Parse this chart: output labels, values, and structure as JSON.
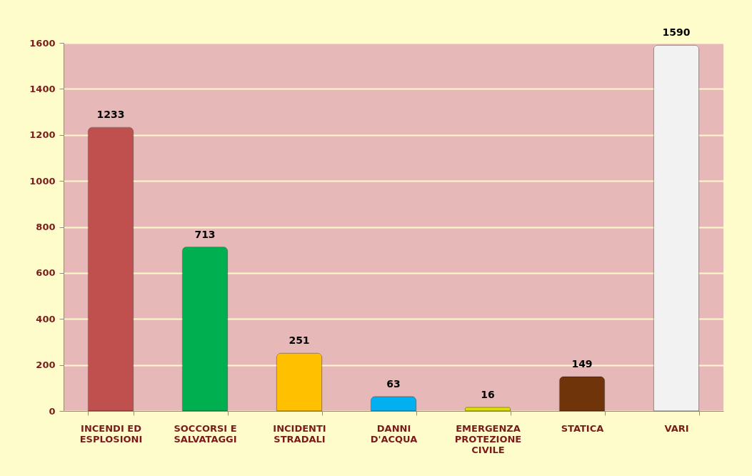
{
  "chart_data": {
    "type": "bar",
    "categories": [
      "INCENDI ED ESPLOSIONI",
      "SOCCORSI E SALVATAGGI",
      "INCIDENTI STRADALI",
      "DANNI D'ACQUA",
      "EMERGENZA PROTEZIONE CIVILE",
      "STATICA",
      "VARI"
    ],
    "values": [
      1233,
      713,
      251,
      63,
      16,
      149,
      1590
    ],
    "colors": [
      "#c0504d",
      "#00b050",
      "#ffc000",
      "#00b0f0",
      "#e0e000",
      "#70340a",
      "#f2f2f2"
    ],
    "ylim": [
      0,
      1600
    ],
    "yticks": [
      0,
      200,
      400,
      600,
      800,
      1000,
      1200,
      1400,
      1600
    ],
    "grid": "y",
    "data_labels": true
  }
}
